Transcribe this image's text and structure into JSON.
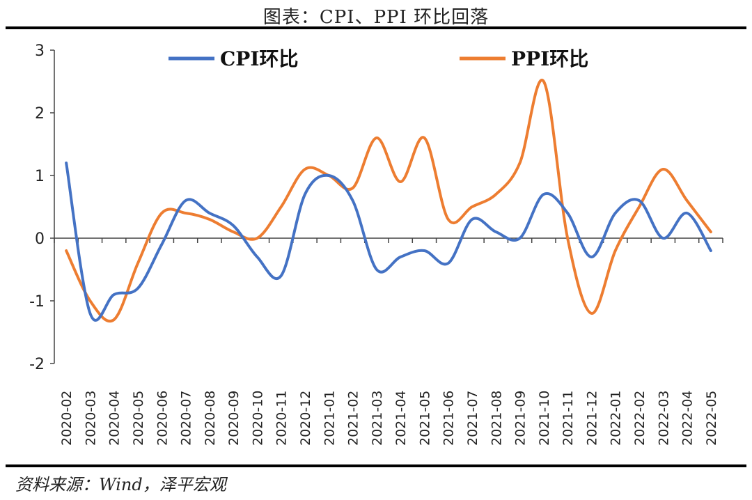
{
  "page_title": "图表：CPI、PPI 环比回落",
  "source": "资料来源：Wind，泽平宏观",
  "chart_data": {
    "type": "line",
    "title": "图表：CPI、PPI 环比回落",
    "xlabel": "",
    "ylabel": "",
    "ylim": [
      -2,
      3
    ],
    "yticks": [
      -2,
      -1,
      0,
      1,
      2,
      3
    ],
    "legend_position": "top",
    "categories": [
      "2020-02",
      "2020-03",
      "2020-04",
      "2020-05",
      "2020-06",
      "2020-07",
      "2020-08",
      "2020-09",
      "2020-10",
      "2020-11",
      "2020-12",
      "2021-01",
      "2021-02",
      "2021-03",
      "2021-04",
      "2021-05",
      "2021-06",
      "2021-07",
      "2021-08",
      "2021-09",
      "2021-10",
      "2021-11",
      "2021-12",
      "2022-01",
      "2022-02",
      "2022-03",
      "2022-04",
      "2022-05"
    ],
    "series": [
      {
        "name": "CPI环比",
        "color": "#4472C4",
        "values": [
          1.2,
          -1.2,
          -0.9,
          -0.8,
          -0.1,
          0.6,
          0.4,
          0.2,
          -0.3,
          -0.6,
          0.7,
          1.0,
          0.6,
          -0.5,
          -0.3,
          -0.2,
          -0.4,
          0.3,
          0.1,
          0.0,
          0.7,
          0.4,
          -0.3,
          0.4,
          0.6,
          0.0,
          0.4,
          -0.2
        ]
      },
      {
        "name": "PPI环比",
        "color": "#ED7D31",
        "values": [
          -0.2,
          -1.0,
          -1.3,
          -0.4,
          0.4,
          0.4,
          0.3,
          0.1,
          0.0,
          0.5,
          1.1,
          1.0,
          0.8,
          1.6,
          0.9,
          1.6,
          0.3,
          0.5,
          0.7,
          1.2,
          2.5,
          0.0,
          -1.2,
          -0.2,
          0.5,
          1.1,
          0.6,
          0.1
        ]
      }
    ]
  }
}
